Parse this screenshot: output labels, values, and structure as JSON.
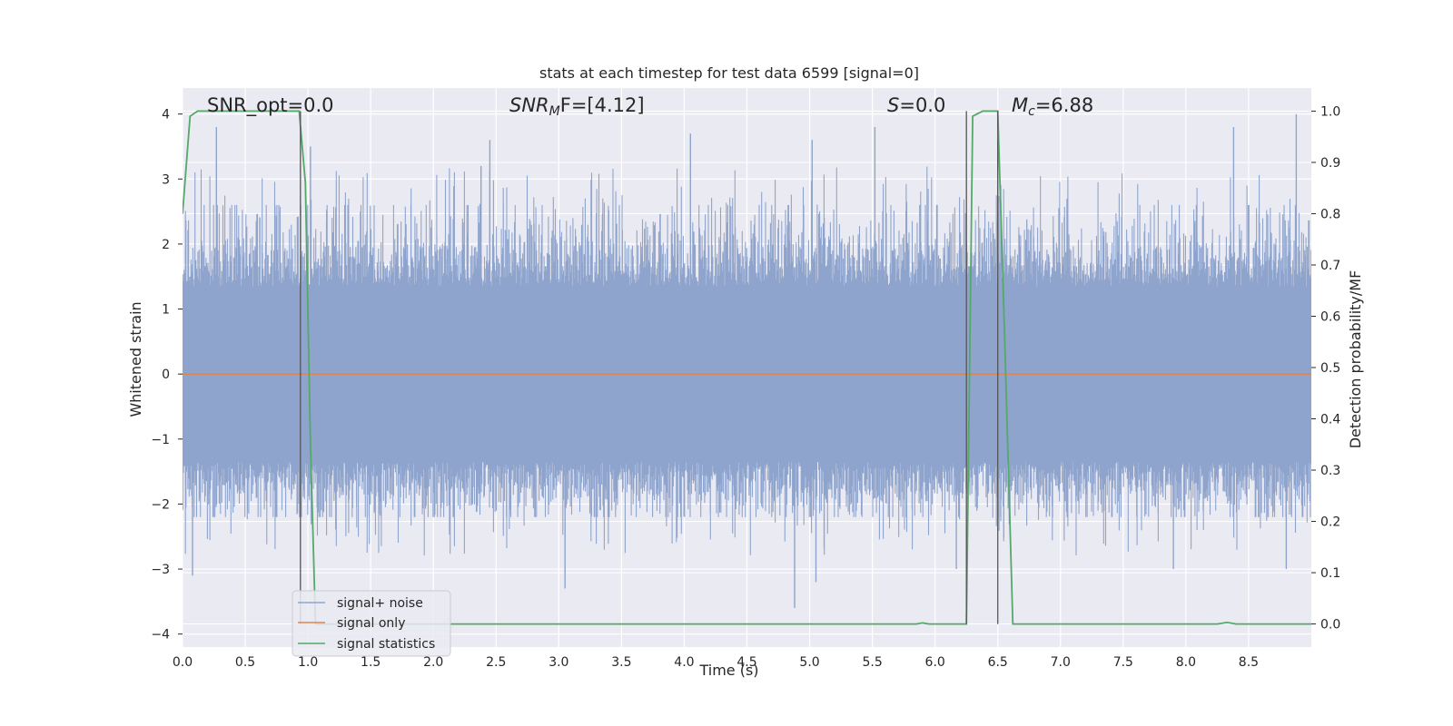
{
  "chart_data": {
    "type": "line",
    "title": "stats at each timestep for test data 6599 [signal=0]",
    "xlabel": "Time (s)",
    "ylabel": "Whitened strain",
    "y2label": "Detection probability/MF",
    "xlim": [
      0.0,
      9.0
    ],
    "ylim": [
      -4.2,
      4.4
    ],
    "y2lim": [
      -0.045,
      1.045
    ],
    "xticks": [
      "0.0",
      "0.5",
      "1.0",
      "1.5",
      "2.0",
      "2.5",
      "3.0",
      "3.5",
      "4.0",
      "4.5",
      "5.0",
      "5.5",
      "6.0",
      "6.5",
      "7.0",
      "7.5",
      "8.0",
      "8.5"
    ],
    "yticks": [
      "4",
      "3",
      "2",
      "1",
      "0",
      "−1",
      "−2",
      "−3",
      "−4"
    ],
    "y2ticks": [
      "1.0",
      "0.9",
      "0.8",
      "0.7",
      "0.6",
      "0.5",
      "0.4",
      "0.3",
      "0.2",
      "0.1",
      "0.0"
    ],
    "grid": true,
    "legend_position": "lower-left",
    "annotations": [
      {
        "text": "SNR_opt=0.0"
      },
      {
        "text": "SNR_MF=[4.12]",
        "main": "SNR",
        "sub": "M",
        "rest": "F=[4.12]"
      },
      {
        "text": "S=0.0",
        "main": "S",
        "rest": "=0.0"
      },
      {
        "text": "M_c=6.88",
        "main": "M",
        "sub": "c",
        "rest": "=6.88"
      }
    ],
    "vlines": [
      0.94,
      6.25,
      6.5
    ],
    "series": [
      {
        "name": "signal+ noise",
        "axis": "left",
        "color": "#8fa4cc",
        "style": "noise",
        "envelope_y": [
          -2.2,
          2.6
        ],
        "spike_peaks": [
          {
            "x": 0.27,
            "y": 3.8
          },
          {
            "x": 1.02,
            "y": 3.5
          },
          {
            "x": 2.38,
            "y": 3.2
          },
          {
            "x": 2.45,
            "y": 3.6
          },
          {
            "x": 4.05,
            "y": 3.7
          },
          {
            "x": 5.02,
            "y": 3.6
          },
          {
            "x": 5.52,
            "y": 3.8
          },
          {
            "x": 6.5,
            "y": 3.6
          },
          {
            "x": 8.38,
            "y": 3.8
          },
          {
            "x": 8.88,
            "y": 4.0
          },
          {
            "x": 0.08,
            "y": -3.1
          },
          {
            "x": 3.05,
            "y": -3.3
          },
          {
            "x": 4.88,
            "y": -3.6
          },
          {
            "x": 5.05,
            "y": -3.2
          },
          {
            "x": 6.17,
            "y": -3.0
          },
          {
            "x": 7.9,
            "y": -3.0
          },
          {
            "x": 8.8,
            "y": -3.0
          }
        ]
      },
      {
        "name": "signal only",
        "axis": "left",
        "color": "#dd8452",
        "x": [
          0.0,
          9.0
        ],
        "y": [
          0.0,
          0.0
        ]
      },
      {
        "name": "signal statistics",
        "axis": "right",
        "color": "#55a868",
        "x": [
          0.0,
          0.06,
          0.12,
          0.25,
          0.5,
          0.75,
          0.93,
          0.98,
          1.02,
          1.06,
          1.1,
          5.85,
          5.9,
          5.95,
          6.25,
          6.3,
          6.38,
          6.5,
          6.55,
          6.62,
          8.25,
          8.33,
          8.4,
          9.0
        ],
        "y": [
          0.8,
          0.99,
          1.0,
          1.0,
          1.0,
          1.0,
          1.0,
          0.86,
          0.35,
          0.0,
          0.0,
          0.0,
          0.002,
          0.0,
          0.0,
          0.99,
          1.0,
          1.0,
          0.6,
          0.0,
          0.0,
          0.003,
          0.0,
          0.0
        ]
      }
    ]
  }
}
